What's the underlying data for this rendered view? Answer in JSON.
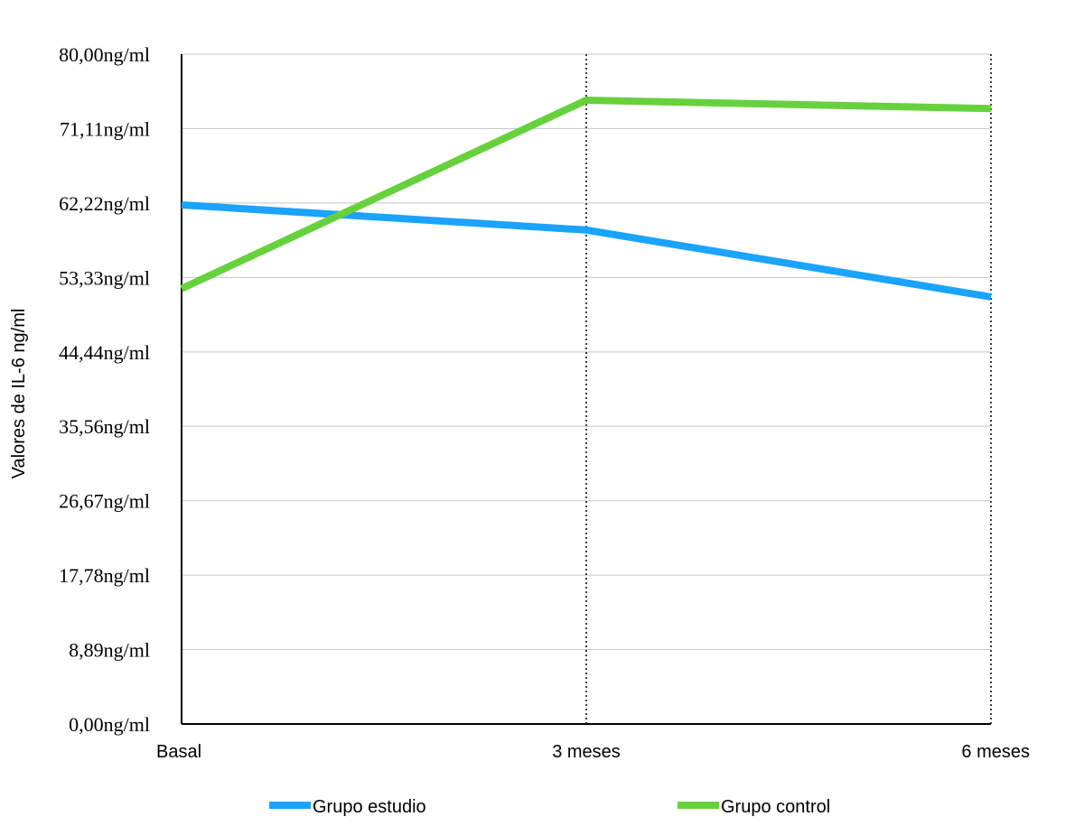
{
  "chart_data": {
    "type": "line",
    "title": "",
    "xlabel": "",
    "ylabel": "Valores de IL-6 ng/ml",
    "categories": [
      "Basal",
      "3 meses",
      "6 meses"
    ],
    "ylim": [
      0,
      80
    ],
    "y_ticks": [
      0,
      8.89,
      17.78,
      26.67,
      35.56,
      44.44,
      53.33,
      62.22,
      71.11,
      80
    ],
    "y_tick_labels": [
      "0,00ng/ml",
      "8,89ng/ml",
      "17,78ng/ml",
      "26,67ng/ml",
      "35,56ng/ml",
      "44,44ng/ml",
      "53,33ng/ml",
      "62,22ng/ml",
      "71,11ng/ml",
      "80,00ng/ml"
    ],
    "grid": true,
    "legend_position": "bottom",
    "series": [
      {
        "name": "Grupo estudio",
        "color": "#1aa3ff",
        "values": [
          62.0,
          59.0,
          51.0
        ]
      },
      {
        "name": "Grupo control",
        "color": "#66d13d",
        "values": [
          52.0,
          74.5,
          73.5
        ]
      }
    ]
  }
}
